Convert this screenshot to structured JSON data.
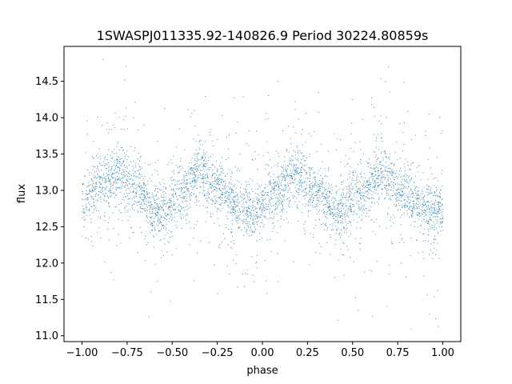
{
  "chart_data": {
    "type": "scatter",
    "title": "1SWASPJ011335.92-140826.9 Period 30224.80859s",
    "xlabel": "phase",
    "ylabel": "flux",
    "xlim": [
      -1.1,
      1.1
    ],
    "ylim": [
      10.92,
      14.98
    ],
    "xticks": [
      -1.0,
      -0.75,
      -0.5,
      -0.25,
      0.0,
      0.25,
      0.5,
      0.75,
      1.0
    ],
    "xtick_labels": [
      "−1.00",
      "−0.75",
      "−0.50",
      "−0.25",
      "0.00",
      "0.25",
      "0.50",
      "0.75",
      "1.00"
    ],
    "yticks": [
      11.0,
      11.5,
      12.0,
      12.5,
      13.0,
      13.5,
      14.0,
      14.5
    ],
    "ytick_labels": [
      "11.0",
      "11.5",
      "12.0",
      "12.5",
      "13.0",
      "13.5",
      "14.0",
      "14.5"
    ],
    "grid": false,
    "point_color": "#1f77b4",
    "series": [
      {
        "phase_range": [
          -1.0,
          1.0
        ],
        "profile": [
          {
            "x": -1.0,
            "y": 12.85
          },
          {
            "x": -0.9,
            "y": 13.1
          },
          {
            "x": -0.8,
            "y": 13.25
          },
          {
            "x": -0.7,
            "y": 13.05
          },
          {
            "x": -0.6,
            "y": 12.75
          },
          {
            "x": -0.55,
            "y": 12.72
          },
          {
            "x": -0.45,
            "y": 12.95
          },
          {
            "x": -0.35,
            "y": 13.25
          },
          {
            "x": -0.25,
            "y": 13.05
          },
          {
            "x": -0.15,
            "y": 12.8
          },
          {
            "x": -0.05,
            "y": 12.7
          },
          {
            "x": 0.05,
            "y": 12.9
          },
          {
            "x": 0.18,
            "y": 13.25
          },
          {
            "x": 0.3,
            "y": 13.0
          },
          {
            "x": 0.42,
            "y": 12.72
          },
          {
            "x": 0.55,
            "y": 12.95
          },
          {
            "x": 0.67,
            "y": 13.25
          },
          {
            "x": 0.8,
            "y": 12.95
          },
          {
            "x": 0.9,
            "y": 12.75
          },
          {
            "x": 1.0,
            "y": 12.7
          }
        ]
      }
    ]
  }
}
